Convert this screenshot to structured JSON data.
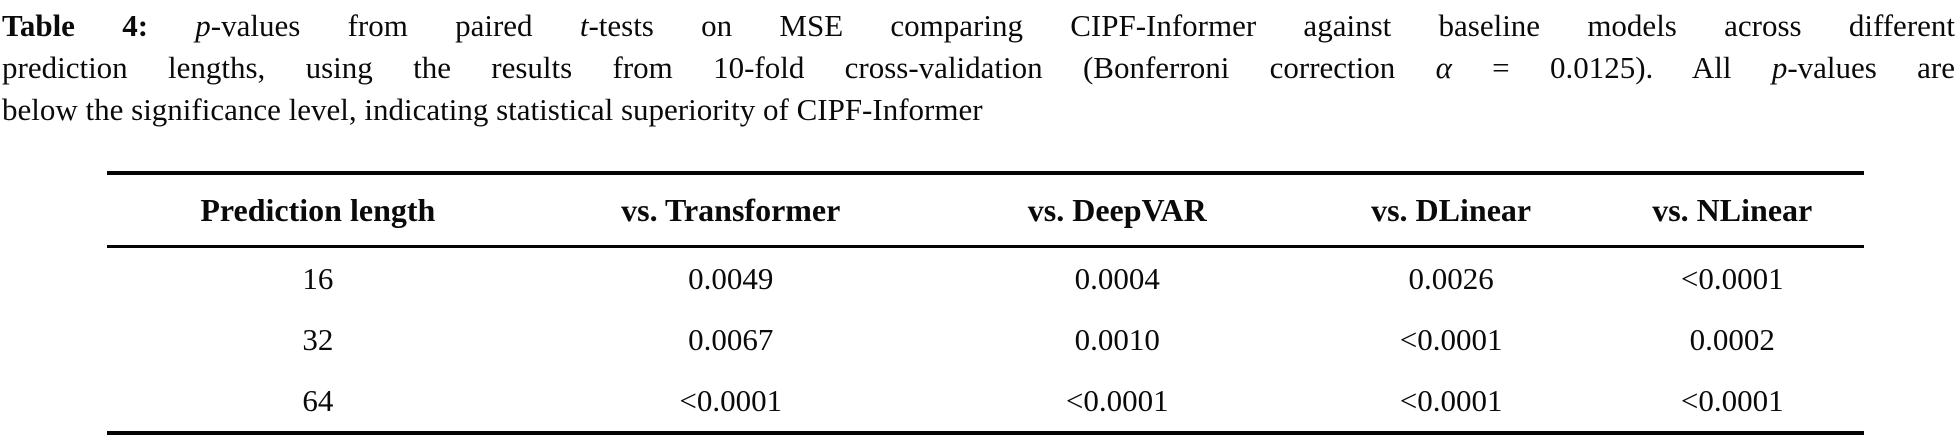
{
  "colors": {
    "background": "#ffffff",
    "text": "#0a0a0a",
    "rule": "#050505"
  },
  "caption": {
    "line1": {
      "label": "Table 4:",
      "p_italic": "p",
      "seg1": "-values from paired ",
      "t_italic": "t",
      "seg2": "-tests on MSE comparing CIPF-Informer against baseline models across different"
    },
    "line2": {
      "seg1": "prediction lengths, using the results from 10-fold cross-validation (Bonferroni correction ",
      "alpha_italic": "α",
      "seg2": " = 0.0125). All ",
      "p_italic": "p",
      "seg3": "-values are"
    },
    "line3": "below the significance level, indicating statistical superiority of CIPF-Informer"
  },
  "table": {
    "headers": [
      "Prediction length",
      "vs. Transformer",
      "vs. DeepVAR",
      "vs. DLinear",
      "vs. NLinear"
    ],
    "rows": [
      [
        "16",
        "0.0049",
        "0.0004",
        "0.0026",
        "<0.0001"
      ],
      [
        "32",
        "0.0067",
        "0.0010",
        "<0.0001",
        "0.0002"
      ],
      [
        "64",
        "<0.0001",
        "<0.0001",
        "<0.0001",
        "<0.0001"
      ]
    ]
  }
}
